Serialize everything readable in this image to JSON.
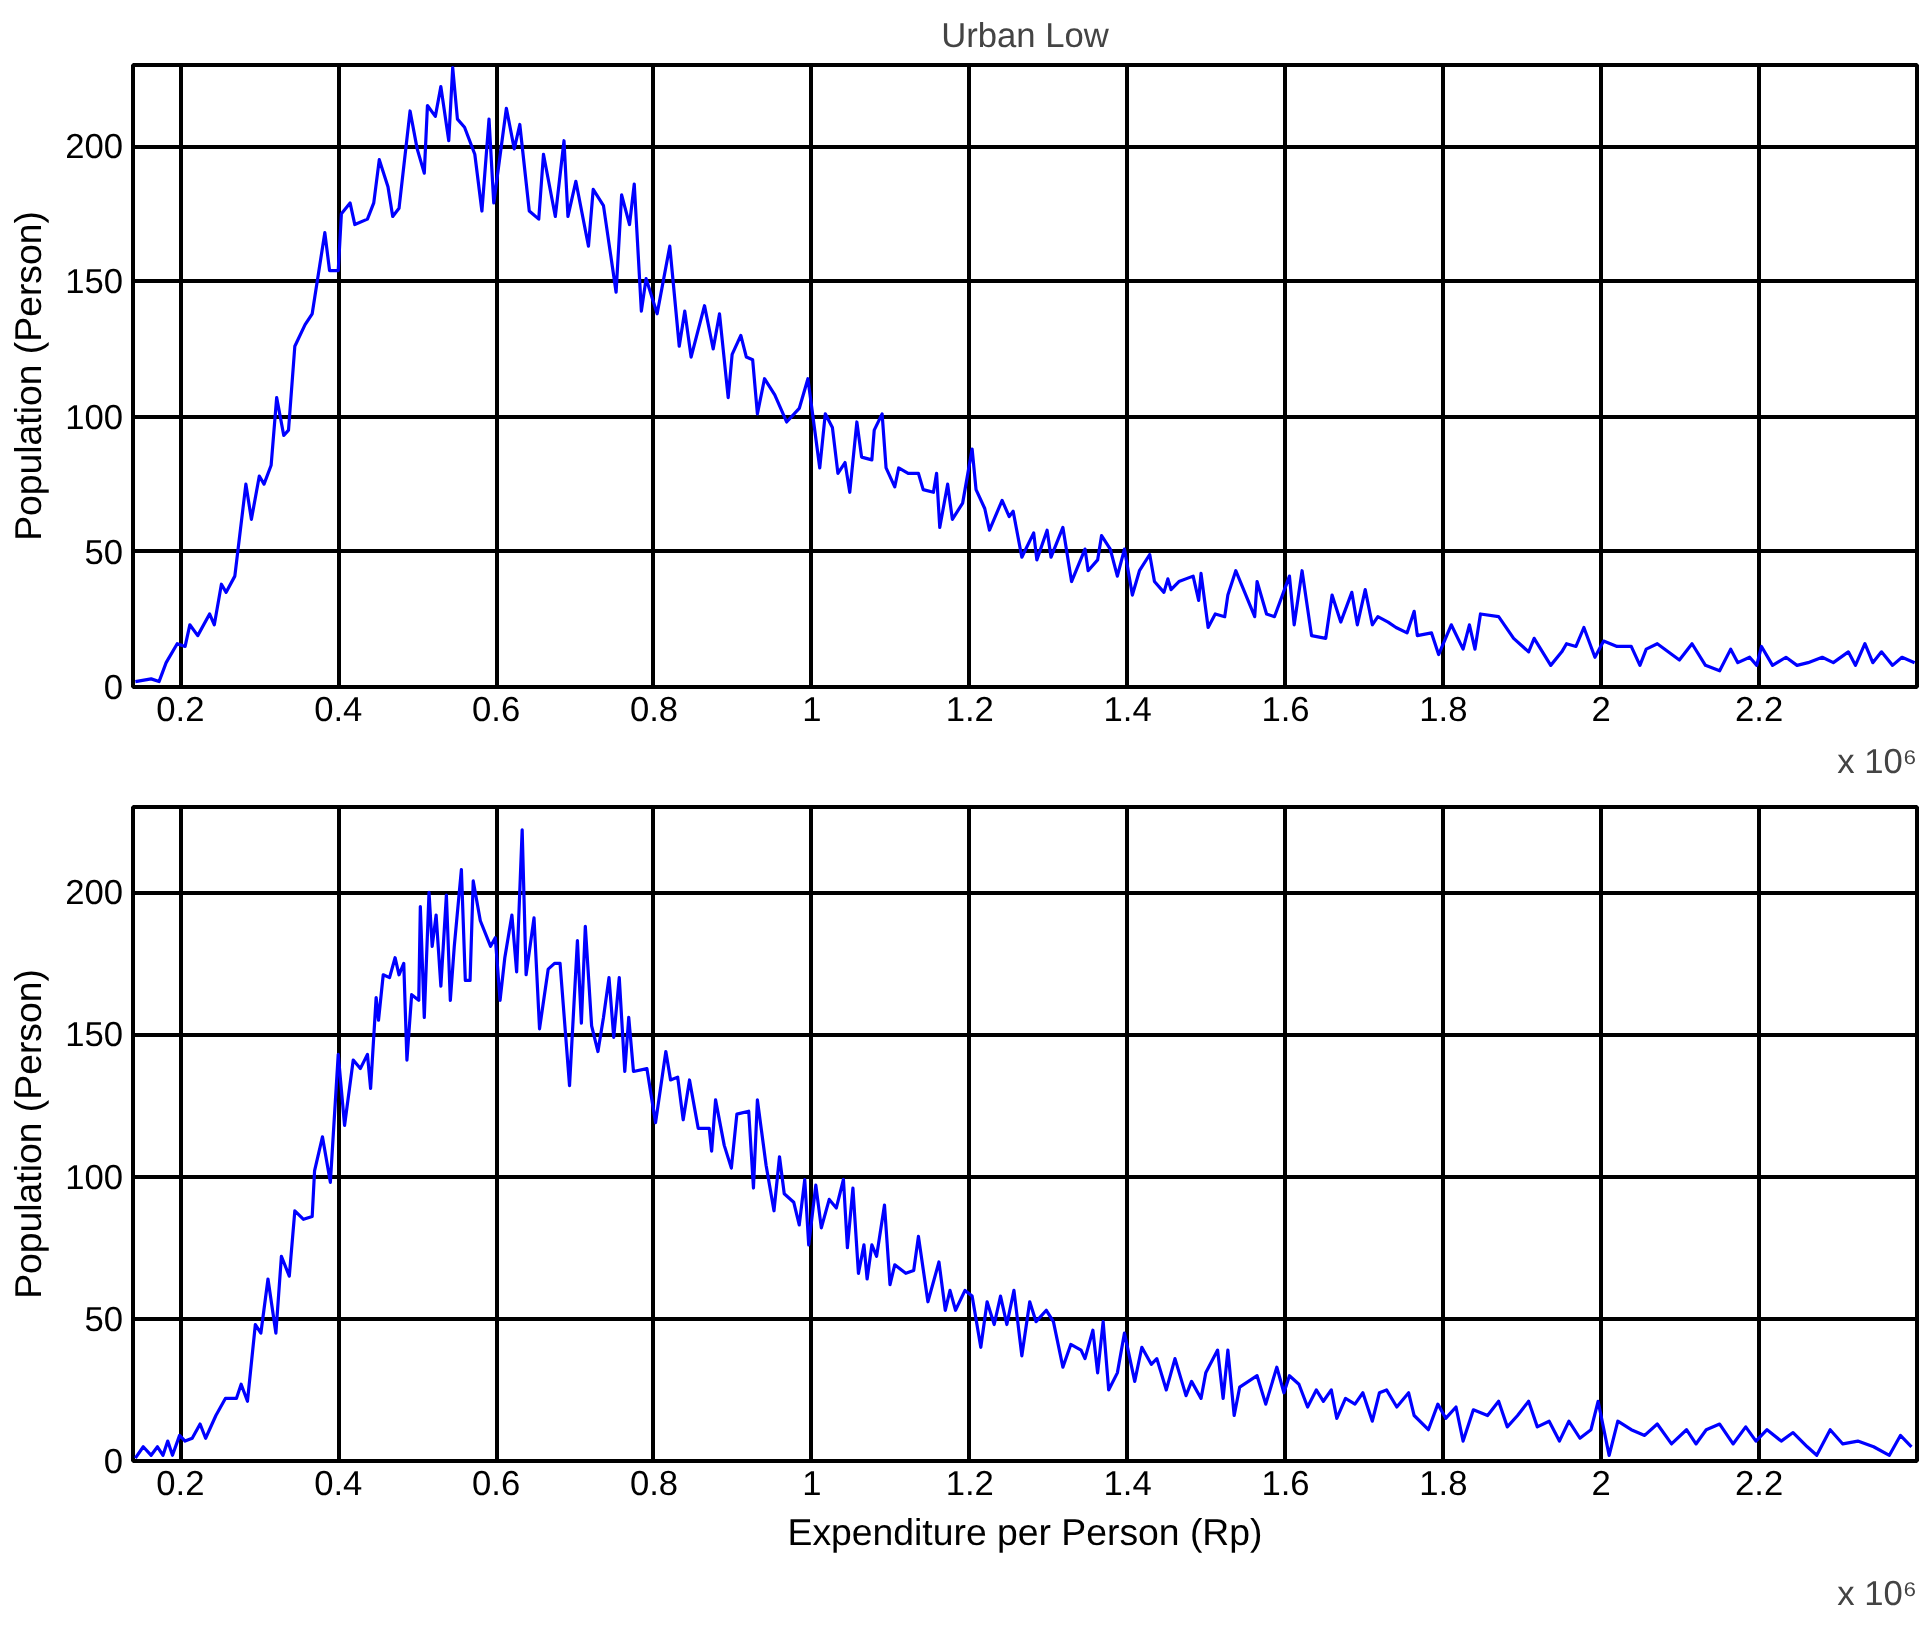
{
  "chart_data": [
    {
      "type": "line",
      "title": "Urban Low",
      "ylabel": "Population (Person)",
      "annotations": [
        "x 10⁶"
      ],
      "xlim": [
        0.14,
        2.4
      ],
      "ylim": [
        0,
        230
      ],
      "xticks": [
        0.2,
        0.4,
        0.6,
        0.8,
        1,
        1.2,
        1.4,
        1.6,
        1.8,
        2,
        2.2
      ],
      "yticks": [
        0,
        50,
        100,
        150,
        200
      ],
      "grid": true,
      "series": [
        {
          "color": "#0000ff",
          "x": [
            0.143,
            0.163,
            0.173,
            0.182,
            0.196,
            0.206,
            0.212,
            0.222,
            0.237,
            0.243,
            0.252,
            0.258,
            0.269,
            0.283,
            0.29,
            0.3,
            0.306,
            0.315,
            0.322,
            0.331,
            0.337,
            0.345,
            0.358,
            0.367,
            0.383,
            0.389,
            0.4,
            0.404,
            0.415,
            0.421,
            0.437,
            0.445,
            0.452,
            0.463,
            0.469,
            0.477,
            0.491,
            0.5,
            0.509,
            0.513,
            0.523,
            0.53,
            0.54,
            0.545,
            0.551,
            0.56,
            0.573,
            0.582,
            0.591,
            0.597,
            0.613,
            0.623,
            0.63,
            0.642,
            0.654,
            0.66,
            0.675,
            0.686,
            0.691,
            0.701,
            0.717,
            0.723,
            0.736,
            0.752,
            0.759,
            0.769,
            0.775,
            0.784,
            0.79,
            0.804,
            0.82,
            0.832,
            0.839,
            0.847,
            0.864,
            0.875,
            0.883,
            0.894,
            0.899,
            0.91,
            0.917,
            0.925,
            0.931,
            0.94,
            0.953,
            0.968,
            0.984,
            0.995,
            1.01,
            1.017,
            1.026,
            1.033,
            1.042,
            1.048,
            1.057,
            1.063,
            1.076,
            1.079,
            1.089,
            1.094,
            1.105,
            1.11,
            1.122,
            1.135,
            1.141,
            1.154,
            1.158,
            1.162,
            1.172,
            1.178,
            1.191,
            1.203,
            1.208,
            1.219,
            1.225,
            1.241,
            1.25,
            1.255,
            1.266,
            1.281,
            1.285,
            1.298,
            1.303,
            1.318,
            1.329,
            1.346,
            1.35,
            1.362,
            1.367,
            1.378,
            1.387,
            1.396,
            1.406,
            1.415,
            1.428,
            1.434,
            1.446,
            1.451,
            1.455,
            1.465,
            1.483,
            1.49,
            1.493,
            1.502,
            1.511,
            1.523,
            1.527,
            1.537,
            1.561,
            1.564,
            1.576,
            1.586,
            1.605,
            1.611,
            1.621,
            1.633,
            1.651,
            1.659,
            1.67,
            1.684,
            1.691,
            1.701,
            1.71,
            1.717,
            1.73,
            1.74,
            1.754,
            1.763,
            1.767,
            1.785,
            1.794,
            1.81,
            1.825,
            1.833,
            1.84,
            1.847,
            1.87,
            1.889,
            1.908,
            1.915,
            1.936,
            1.95,
            1.956,
            1.968,
            1.978,
            1.992,
            2.003,
            2.02,
            2.038,
            2.049,
            2.057,
            2.071,
            2.099,
            2.115,
            2.132,
            2.15,
            2.164,
            2.173,
            2.188,
            2.197,
            2.203,
            2.217,
            2.234,
            2.248,
            2.262,
            2.28,
            2.294,
            2.313,
            2.322,
            2.334,
            2.344,
            2.355,
            2.369,
            2.381,
            2.397
          ],
          "values": [
            2,
            3,
            2,
            9,
            16,
            15,
            23,
            19,
            27,
            23,
            38,
            35,
            41,
            75,
            62,
            78,
            75,
            82,
            107,
            93,
            95,
            126,
            134,
            138,
            168,
            154,
            154,
            175,
            179,
            171,
            173,
            179,
            195,
            185,
            174,
            177,
            213,
            199,
            190,
            215,
            211,
            222,
            202,
            229,
            210,
            207,
            197,
            176,
            210,
            179,
            214,
            199,
            208,
            176,
            173,
            197,
            174,
            202,
            174,
            187,
            163,
            184,
            178,
            146,
            182,
            171,
            186,
            139,
            151,
            138,
            163,
            126,
            139,
            122,
            141,
            125,
            138,
            107,
            123,
            130,
            122,
            121,
            101,
            114,
            108,
            98,
            103,
            114,
            81,
            101,
            96,
            79,
            83,
            72,
            98,
            85,
            84,
            95,
            101,
            81,
            74,
            81,
            79,
            79,
            73,
            72,
            79,
            59,
            75,
            62,
            68,
            88,
            73,
            66,
            58,
            69,
            63,
            65,
            48,
            57,
            47,
            58,
            48,
            59,
            39,
            51,
            43,
            47,
            56,
            51,
            41,
            51,
            34,
            43,
            49,
            39,
            35,
            40,
            36,
            39,
            41,
            32,
            42,
            22,
            27,
            26,
            34,
            43,
            26,
            39,
            27,
            26,
            41,
            23,
            43,
            19,
            18,
            34,
            24,
            35,
            23,
            36,
            23,
            26,
            24,
            22,
            20,
            28,
            19,
            20,
            12,
            23,
            14,
            23,
            14,
            27,
            26,
            18,
            13,
            18,
            8,
            13,
            16,
            15,
            22,
            11,
            17,
            15,
            15,
            8,
            14,
            16,
            10,
            16,
            8,
            6,
            14,
            9,
            11,
            8,
            15,
            8,
            11,
            8,
            9,
            11,
            9,
            13,
            8,
            16,
            9,
            13,
            8,
            11,
            9
          ]
        }
      ]
    },
    {
      "type": "line",
      "xlabel": "Expenditure per Person (Rp)",
      "ylabel": "Population (Person)",
      "annotations": [
        "x 10⁶"
      ],
      "xlim": [
        0.14,
        2.4
      ],
      "ylim": [
        0,
        230
      ],
      "xticks": [
        0.2,
        0.4,
        0.6,
        0.8,
        1,
        1.2,
        1.4,
        1.6,
        1.8,
        2,
        2.2
      ],
      "yticks": [
        0,
        50,
        100,
        150,
        200
      ],
      "grid": true,
      "series": [
        {
          "color": "#0000ff",
          "x": [
            0.143,
            0.153,
            0.163,
            0.171,
            0.178,
            0.184,
            0.19,
            0.199,
            0.206,
            0.215,
            0.225,
            0.232,
            0.245,
            0.257,
            0.271,
            0.277,
            0.285,
            0.295,
            0.302,
            0.311,
            0.321,
            0.328,
            0.338,
            0.345,
            0.356,
            0.367,
            0.37,
            0.38,
            0.39,
            0.4,
            0.408,
            0.419,
            0.428,
            0.437,
            0.441,
            0.448,
            0.451,
            0.457,
            0.465,
            0.472,
            0.477,
            0.483,
            0.487,
            0.493,
            0.502,
            0.504,
            0.509,
            0.515,
            0.519,
            0.524,
            0.53,
            0.537,
            0.542,
            0.547,
            0.556,
            0.561,
            0.567,
            0.571,
            0.58,
            0.593,
            0.599,
            0.605,
            0.611,
            0.62,
            0.626,
            0.633,
            0.638,
            0.648,
            0.655,
            0.666,
            0.674,
            0.681,
            0.693,
            0.703,
            0.708,
            0.713,
            0.721,
            0.729,
            0.736,
            0.743,
            0.749,
            0.756,
            0.763,
            0.768,
            0.774,
            0.791,
            0.802,
            0.815,
            0.821,
            0.83,
            0.837,
            0.845,
            0.856,
            0.87,
            0.873,
            0.878,
            0.889,
            0.898,
            0.905,
            0.92,
            0.926,
            0.931,
            0.942,
            0.952,
            0.959,
            0.965,
            0.977,
            0.984,
            0.991,
            0.996,
            1.005,
            1.012,
            1.022,
            1.031,
            1.04,
            1.045,
            1.052,
            1.059,
            1.066,
            1.07,
            1.076,
            1.082,
            1.092,
            1.099,
            1.105,
            1.119,
            1.129,
            1.135,
            1.147,
            1.161,
            1.169,
            1.175,
            1.182,
            1.194,
            1.203,
            1.214,
            1.222,
            1.231,
            1.239,
            1.247,
            1.256,
            1.266,
            1.276,
            1.284,
            1.297,
            1.306,
            1.318,
            1.328,
            1.341,
            1.346,
            1.356,
            1.362,
            1.369,
            1.376,
            1.387,
            1.396,
            1.409,
            1.418,
            1.43,
            1.437,
            1.449,
            1.46,
            1.474,
            1.481,
            1.493,
            1.499,
            1.514,
            1.521,
            1.527,
            1.535,
            1.542,
            1.553,
            1.564,
            1.575,
            1.589,
            1.598,
            1.605,
            1.617,
            1.628,
            1.639,
            1.648,
            1.658,
            1.665,
            1.676,
            1.688,
            1.698,
            1.71,
            1.719,
            1.728,
            1.741,
            1.756,
            1.763,
            1.781,
            1.793,
            1.803,
            1.816,
            1.825,
            1.838,
            1.856,
            1.87,
            1.881,
            1.894,
            1.908,
            1.919,
            1.934,
            1.947,
            1.959,
            1.973,
            1.987,
            1.996,
            2.01,
            2.021,
            2.038,
            2.055,
            2.071,
            2.089,
            2.108,
            2.12,
            2.133,
            2.15,
            2.167,
            2.183,
            2.196,
            2.21,
            2.228,
            2.243,
            2.261,
            2.273,
            2.29,
            2.306,
            2.325,
            2.345,
            2.365,
            2.379,
            2.393
          ],
          "values": [
            1,
            5,
            2,
            5,
            2,
            7,
            2,
            9,
            7,
            8,
            13,
            8,
            16,
            22,
            22,
            27,
            21,
            48,
            45,
            64,
            45,
            72,
            65,
            88,
            85,
            86,
            102,
            114,
            98,
            143,
            118,
            141,
            138,
            143,
            131,
            163,
            155,
            171,
            170,
            177,
            171,
            175,
            141,
            164,
            162,
            195,
            156,
            200,
            181,
            192,
            167,
            199,
            162,
            181,
            208,
            169,
            169,
            204,
            190,
            181,
            184,
            162,
            177,
            192,
            172,
            222,
            171,
            191,
            152,
            173,
            175,
            175,
            132,
            183,
            154,
            188,
            153,
            144,
            156,
            170,
            149,
            170,
            137,
            156,
            137,
            138,
            119,
            144,
            134,
            135,
            120,
            134,
            117,
            117,
            109,
            127,
            111,
            103,
            122,
            123,
            96,
            127,
            104,
            88,
            107,
            94,
            91,
            83,
            99,
            76,
            97,
            82,
            92,
            89,
            99,
            75,
            96,
            66,
            76,
            64,
            76,
            72,
            90,
            62,
            69,
            66,
            67,
            79,
            56,
            70,
            53,
            60,
            53,
            60,
            58,
            40,
            56,
            48,
            58,
            48,
            60,
            37,
            56,
            49,
            53,
            49,
            33,
            41,
            39,
            36,
            46,
            31,
            49,
            25,
            31,
            45,
            28,
            40,
            34,
            36,
            25,
            36,
            23,
            28,
            22,
            31,
            39,
            22,
            39,
            16,
            26,
            28,
            30,
            20,
            33,
            24,
            30,
            27,
            19,
            25,
            21,
            25,
            15,
            22,
            20,
            24,
            14,
            24,
            25,
            19,
            24,
            16,
            11,
            20,
            15,
            19,
            7,
            18,
            16,
            21,
            12,
            16,
            21,
            12,
            14,
            7,
            14,
            8,
            11,
            21,
            2,
            14,
            11,
            9,
            13,
            6,
            11,
            6,
            11,
            13,
            6,
            12,
            7,
            11,
            7,
            10,
            5,
            2,
            11,
            6,
            7,
            5,
            2,
            9,
            5
          ]
        }
      ]
    }
  ]
}
